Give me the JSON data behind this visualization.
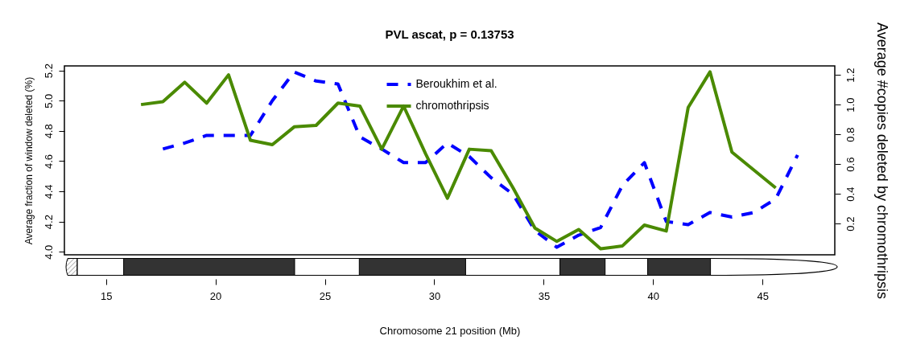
{
  "chart_data": {
    "type": "line",
    "title": "PVL ascat, p = 0.13753",
    "xlabel": "Chromosome 21 position (Mb)",
    "ylabel": "Average fraction of window deleted (%)",
    "y2label": "Average #copies deleted by chromothripsis",
    "xlim": [
      13.1,
      48.3
    ],
    "xticks": [
      15,
      20,
      25,
      30,
      35,
      40,
      45
    ],
    "ylim": [
      3.98,
      5.23
    ],
    "yticks": [
      {
        "value": 4,
        "label": "4.0"
      },
      4.2,
      4.4,
      4.6,
      4.8,
      {
        "value": 5,
        "label": "5.0"
      },
      5.2
    ],
    "y2lim": [
      -0.01,
      1.26
    ],
    "y2ticks": [
      0.2,
      0.4,
      0.6,
      0.8,
      {
        "value": 1,
        "label": "1.0"
      },
      1.2
    ],
    "legend": "top",
    "grid": false,
    "series": [
      {
        "name": "Beroukhim et al.",
        "color": "#0000ff",
        "line_style": "dashed",
        "x": [
          17.6,
          18.6,
          19.6,
          20.6,
          21.6,
          22.6,
          23.6,
          24.6,
          25.6,
          26.6,
          27.6,
          28.6,
          29.6,
          30.6,
          31.6,
          32.6,
          33.6,
          34.6,
          35.6,
          36.6,
          37.6,
          38.6,
          39.6,
          40.6,
          41.6,
          42.6,
          43.6,
          44.6,
          45.6,
          46.6
        ],
        "values": [
          4.68,
          4.72,
          4.77,
          4.77,
          4.77,
          5.0,
          5.19,
          5.13,
          5.11,
          4.76,
          4.68,
          4.59,
          4.59,
          4.72,
          4.63,
          4.49,
          4.38,
          4.14,
          4.03,
          4.11,
          4.16,
          4.44,
          4.59,
          4.2,
          4.18,
          4.26,
          4.23,
          4.26,
          4.35,
          4.64
        ]
      },
      {
        "name": "chromothripsis",
        "color": "#4a8a00",
        "line_style": "solid",
        "axis": "y2",
        "x": [
          16.6,
          17.6,
          18.6,
          19.6,
          20.6,
          21.6,
          22.6,
          23.6,
          24.6,
          25.6,
          26.6,
          27.6,
          28.6,
          29.6,
          30.6,
          31.6,
          32.6,
          33.6,
          34.6,
          35.6,
          36.6,
          37.6,
          38.6,
          39.6,
          40.6,
          41.6,
          42.6,
          43.6,
          44.6,
          45.6
        ],
        "values": [
          1.0,
          1.02,
          1.15,
          1.01,
          1.2,
          0.76,
          0.73,
          0.85,
          0.86,
          1.01,
          0.99,
          0.7,
          0.99,
          0.67,
          0.37,
          0.7,
          0.69,
          0.44,
          0.17,
          0.08,
          0.16,
          0.03,
          0.05,
          0.19,
          0.15,
          0.98,
          1.22,
          0.68,
          0.56,
          0.44
        ]
      }
    ]
  }
}
